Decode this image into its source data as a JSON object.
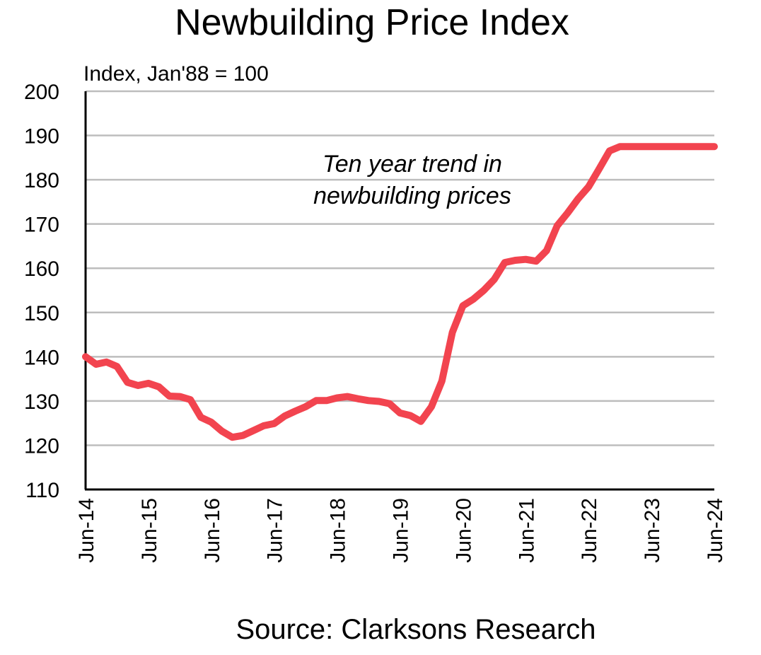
{
  "chart_data": {
    "type": "line",
    "title": "Newbuilding Price Index",
    "ylabel": "Index, Jan'88 = 100",
    "xlabel": "",
    "source": "Source: Clarksons Research",
    "annotation": [
      "Ten year trend in",
      "newbuilding prices"
    ],
    "ylim": [
      110,
      200
    ],
    "yticks": [
      110,
      120,
      130,
      140,
      150,
      160,
      170,
      180,
      190,
      200
    ],
    "xlim": [
      0,
      120
    ],
    "xtick_positions": [
      0,
      12,
      24,
      36,
      48,
      60,
      72,
      84,
      96,
      108,
      120
    ],
    "xtick_labels": [
      "Jun-14",
      "Jun-15",
      "Jun-16",
      "Jun-17",
      "Jun-18",
      "Jun-19",
      "Jun-20",
      "Jun-21",
      "Jun-22",
      "Jun-23",
      "Jun-24"
    ],
    "grid": true,
    "line_color": "#f2444f",
    "series": [
      {
        "name": "Newbuilding Price Index",
        "x": [
          0,
          2,
          4,
          6,
          8,
          10,
          12,
          14,
          16,
          18,
          20,
          22,
          24,
          26,
          28,
          30,
          32,
          34,
          36,
          38,
          40,
          42,
          44,
          46,
          48,
          50,
          52,
          54,
          56,
          58,
          60,
          62,
          64,
          66,
          68,
          70,
          72,
          74,
          76,
          78,
          80,
          82,
          84,
          86,
          88,
          90,
          92,
          94,
          96,
          98,
          100,
          102,
          104,
          106,
          108,
          110,
          112,
          114,
          116,
          118,
          120
        ],
        "values": [
          140,
          138.3,
          138.8,
          137.8,
          134.2,
          133.5,
          134,
          133.2,
          131.1,
          131,
          130.3,
          126.3,
          125.2,
          123.2,
          121.8,
          122.2,
          123.3,
          124.4,
          124.9,
          126.6,
          127.7,
          128.7,
          130.1,
          130.1,
          130.7,
          131,
          130.5,
          130.1,
          129.9,
          129.4,
          127.3,
          126.7,
          125.4,
          128.7,
          134.5,
          145.5,
          151.5,
          153,
          155,
          157.5,
          161.3,
          161.8,
          162,
          161.6,
          164,
          169.6,
          172.5,
          175.7,
          178.4,
          182.4,
          186.5,
          187.5,
          187.5,
          187.5,
          187.5,
          187.5,
          187.5,
          187.5,
          187.5,
          187.5,
          187.5
        ]
      }
    ]
  }
}
